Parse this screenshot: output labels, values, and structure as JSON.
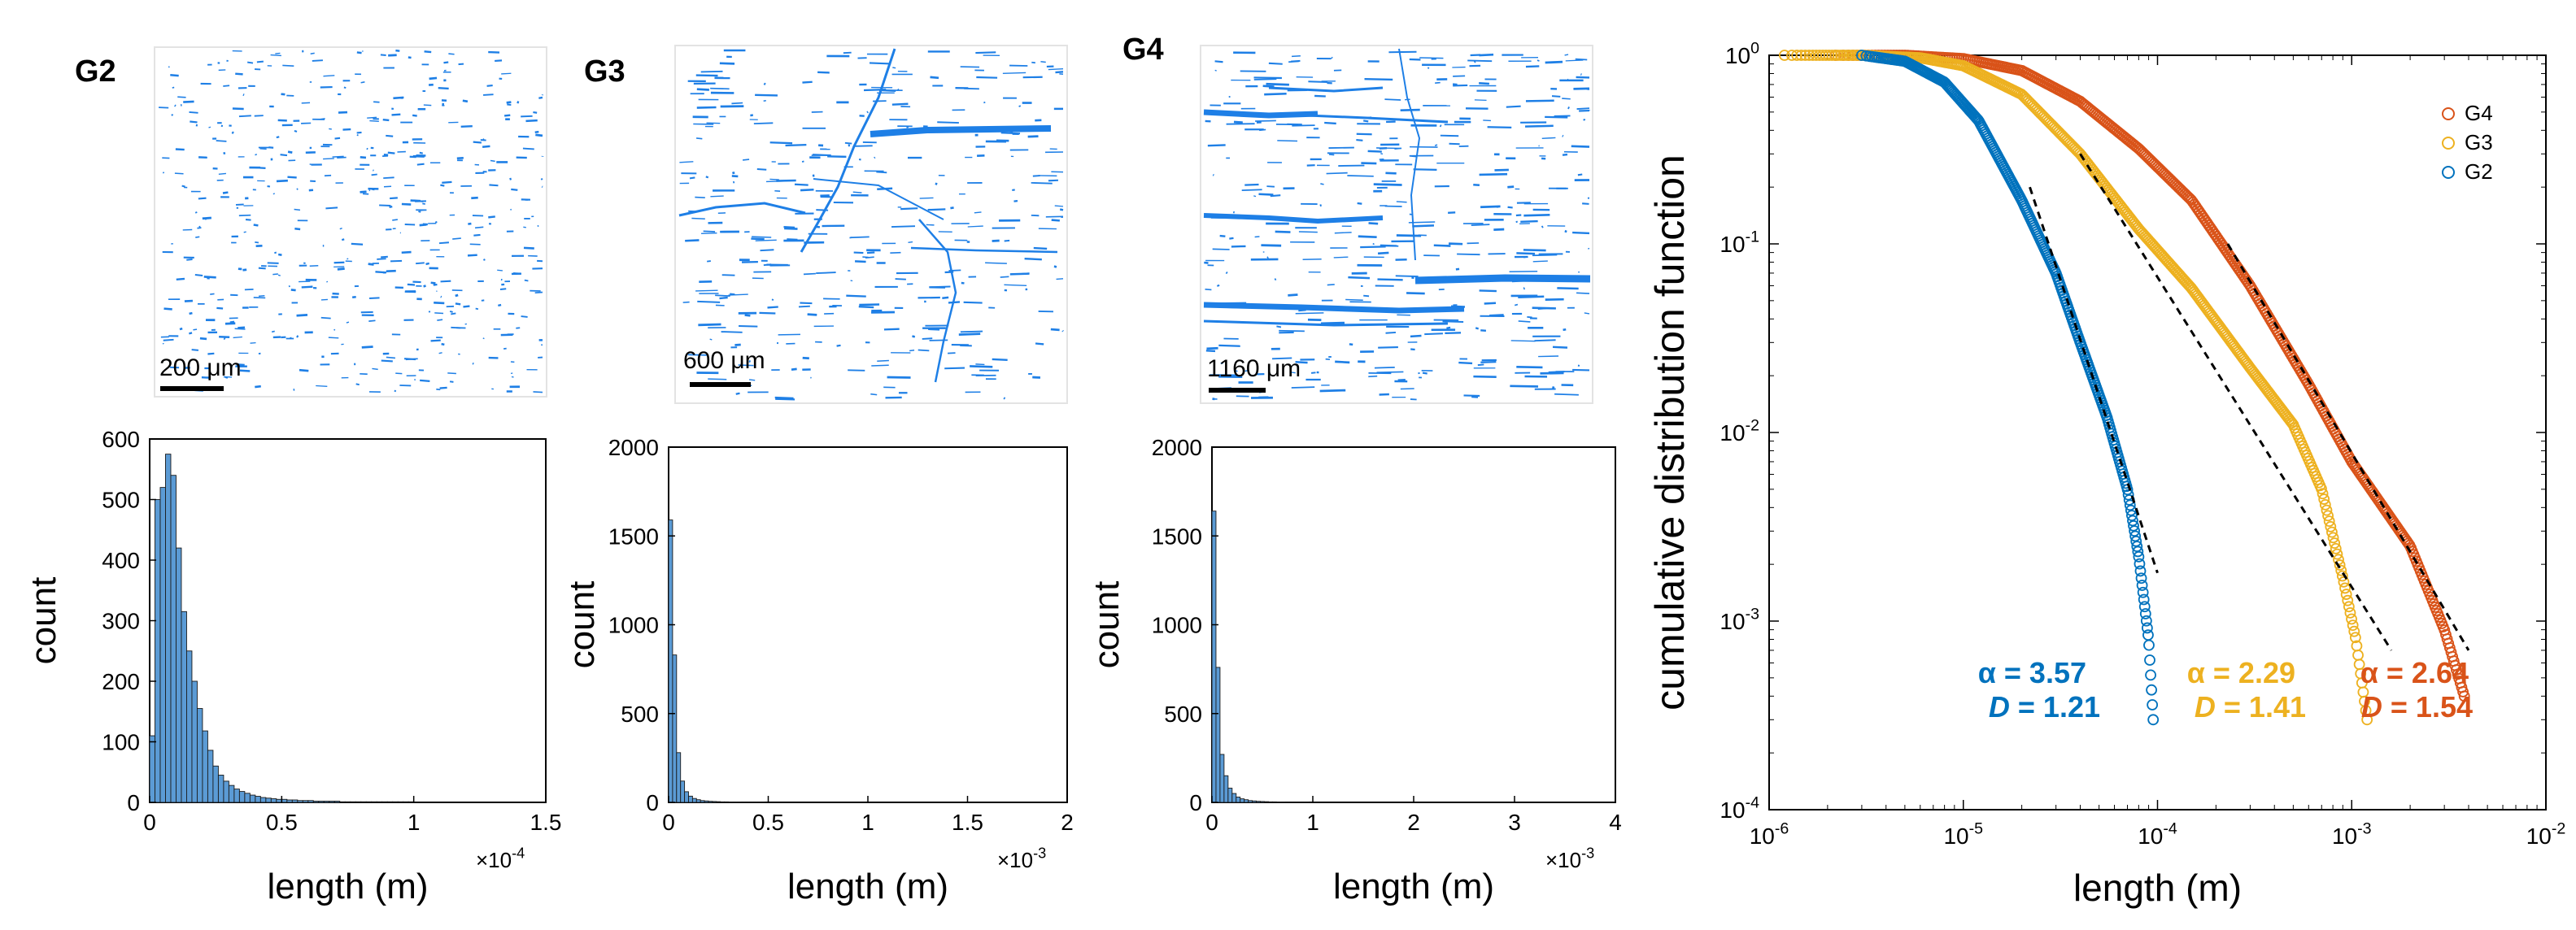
{
  "panels": [
    {
      "label": "G2",
      "scale_bar": "200 μm"
    },
    {
      "label": "G3",
      "scale_bar": "600 μm"
    },
    {
      "label": "G4",
      "scale_bar": "1160 μm"
    }
  ],
  "colors": {
    "G2": "#0072BD",
    "G3": "#EDB120",
    "G4": "#D95319",
    "hist_fill": "#5B9BD5",
    "crack": "#1E7FE6",
    "fit_line": "#000000"
  },
  "chart_data": [
    {
      "type": "bar",
      "panel": "G2",
      "xlabel": "length (m)",
      "ylabel": "count",
      "x_multiplier": "×10",
      "x_exponent": "-4",
      "xlim": [
        0,
        1.5
      ],
      "ylim": [
        0,
        600
      ],
      "xticks": [
        "0",
        "0.5",
        "1",
        "1.5"
      ],
      "yticks": [
        "0",
        "100",
        "200",
        "300",
        "400",
        "500",
        "600"
      ],
      "bin_width": 0.02,
      "values": [
        110,
        500,
        520,
        575,
        540,
        420,
        315,
        250,
        200,
        155,
        118,
        86,
        60,
        45,
        35,
        28,
        22,
        18,
        15,
        12,
        10,
        8,
        7,
        6,
        5,
        5,
        4,
        4,
        3,
        3,
        3,
        2,
        2,
        2,
        2,
        2,
        1,
        1,
        1,
        1,
        1,
        1,
        1,
        1,
        1,
        1,
        1,
        1,
        1,
        1
      ]
    },
    {
      "type": "bar",
      "panel": "G3",
      "xlabel": "length (m)",
      "ylabel": "count",
      "x_multiplier": "×10",
      "x_exponent": "-3",
      "xlim": [
        0,
        2
      ],
      "ylim": [
        0,
        2000
      ],
      "xticks": [
        "0",
        "0.5",
        "1",
        "1.5",
        "2"
      ],
      "yticks": [
        "0",
        "500",
        "1000",
        "1500",
        "2000"
      ],
      "bin_width": 0.02,
      "values": [
        1590,
        830,
        280,
        120,
        60,
        35,
        22,
        15,
        10,
        8,
        6,
        5,
        4,
        3,
        3,
        2,
        2,
        2,
        1,
        1,
        1,
        1,
        1,
        1
      ]
    },
    {
      "type": "bar",
      "panel": "G4",
      "xlabel": "length (m)",
      "ylabel": "count",
      "x_multiplier": "×10",
      "x_exponent": "-3",
      "xlim": [
        0,
        4
      ],
      "ylim": [
        0,
        2000
      ],
      "xticks": [
        "0",
        "1",
        "2",
        "3",
        "4"
      ],
      "yticks": [
        "0",
        "500",
        "1000",
        "1500",
        "2000"
      ],
      "bin_width": 0.04,
      "values": [
        1640,
        760,
        270,
        150,
        80,
        50,
        30,
        20,
        15,
        10,
        8,
        6,
        5,
        4,
        3,
        3,
        2,
        2,
        1,
        1,
        1,
        1,
        1,
        1
      ]
    },
    {
      "type": "scatter",
      "panel": "cdf",
      "scale": "log-log",
      "xlabel": "length (m)",
      "ylabel": "cumulative distribution function",
      "xlim": [
        1e-06,
        0.01
      ],
      "ylim": [
        0.0001,
        1
      ],
      "xticks": [
        {
          "base": "10",
          "exp": "-6"
        },
        {
          "base": "10",
          "exp": "-5"
        },
        {
          "base": "10",
          "exp": "-4"
        },
        {
          "base": "10",
          "exp": "-3"
        },
        {
          "base": "10",
          "exp": "-2"
        }
      ],
      "yticks": [
        {
          "base": "10",
          "exp": "-4"
        },
        {
          "base": "10",
          "exp": "-3"
        },
        {
          "base": "10",
          "exp": "-2"
        },
        {
          "base": "10",
          "exp": "-1"
        },
        {
          "base": "10",
          "exp": "0"
        }
      ],
      "legend": {
        "placement": "top-right",
        "entries": [
          "G4",
          "G3",
          "G2"
        ]
      },
      "series": [
        {
          "name": "G2",
          "xmin": 3e-06,
          "xmax": 9.5e-05,
          "alpha": 3.57,
          "D": 1.21,
          "alpha_text": "α = 3.57",
          "D_label": "D",
          "D_value": " = 1.21",
          "knots": [
            [
              3e-06,
              1.0
            ],
            [
              5e-06,
              0.93
            ],
            [
              8e-06,
              0.72
            ],
            [
              1.2e-05,
              0.45
            ],
            [
              2e-05,
              0.17
            ],
            [
              3e-05,
              0.07
            ],
            [
              4e-05,
              0.03
            ],
            [
              5.5e-05,
              0.012
            ],
            [
              7e-05,
              0.005
            ],
            [
              8e-05,
              0.0022
            ],
            [
              9e-05,
              0.0008
            ],
            [
              9.5e-05,
              0.0003
            ]
          ],
          "fit": [
            [
              2.2e-05,
              0.2
            ],
            [
              0.0001,
              0.0018
            ]
          ]
        },
        {
          "name": "G3",
          "xmin": 1.2e-06,
          "xmax": 0.0012,
          "alpha": 2.29,
          "D": 1.41,
          "alpha_text": "α = 2.29",
          "D_label": "D",
          "D_value": " = 1.41",
          "knots": [
            [
              1.2e-06,
              1.0
            ],
            [
              3e-06,
              1.0
            ],
            [
              6e-06,
              0.97
            ],
            [
              1e-05,
              0.88
            ],
            [
              2e-05,
              0.62
            ],
            [
              4e-05,
              0.3
            ],
            [
              8e-05,
              0.12
            ],
            [
              0.00015,
              0.058
            ],
            [
              0.0003,
              0.022
            ],
            [
              0.0005,
              0.011
            ],
            [
              0.0007,
              0.005
            ],
            [
              0.0009,
              0.0017
            ],
            [
              0.00105,
              0.0008
            ],
            [
              0.0012,
              0.0003
            ]
          ],
          "fit": [
            [
              4e-05,
              0.3
            ],
            [
              0.0016,
              0.0007
            ]
          ]
        },
        {
          "name": "G4",
          "xmin": 2.2e-06,
          "xmax": 0.0038,
          "alpha": 2.64,
          "D": 1.54,
          "alpha_text": "α = 2.64",
          "D_label": "D",
          "D_value": " = 1.54",
          "knots": [
            [
              2.2e-06,
              1.0
            ],
            [
              5e-06,
              1.0
            ],
            [
              1e-05,
              0.96
            ],
            [
              2e-05,
              0.83
            ],
            [
              4e-05,
              0.57
            ],
            [
              8e-05,
              0.32
            ],
            [
              0.00015,
              0.17
            ],
            [
              0.0003,
              0.06
            ],
            [
              0.0006,
              0.018
            ],
            [
              0.001,
              0.007
            ],
            [
              0.002,
              0.0025
            ],
            [
              0.003,
              0.0009
            ],
            [
              0.0038,
              0.0004
            ]
          ],
          "fit": [
            [
              0.00023,
              0.1
            ],
            [
              0.004,
              0.0007
            ]
          ]
        }
      ]
    }
  ]
}
